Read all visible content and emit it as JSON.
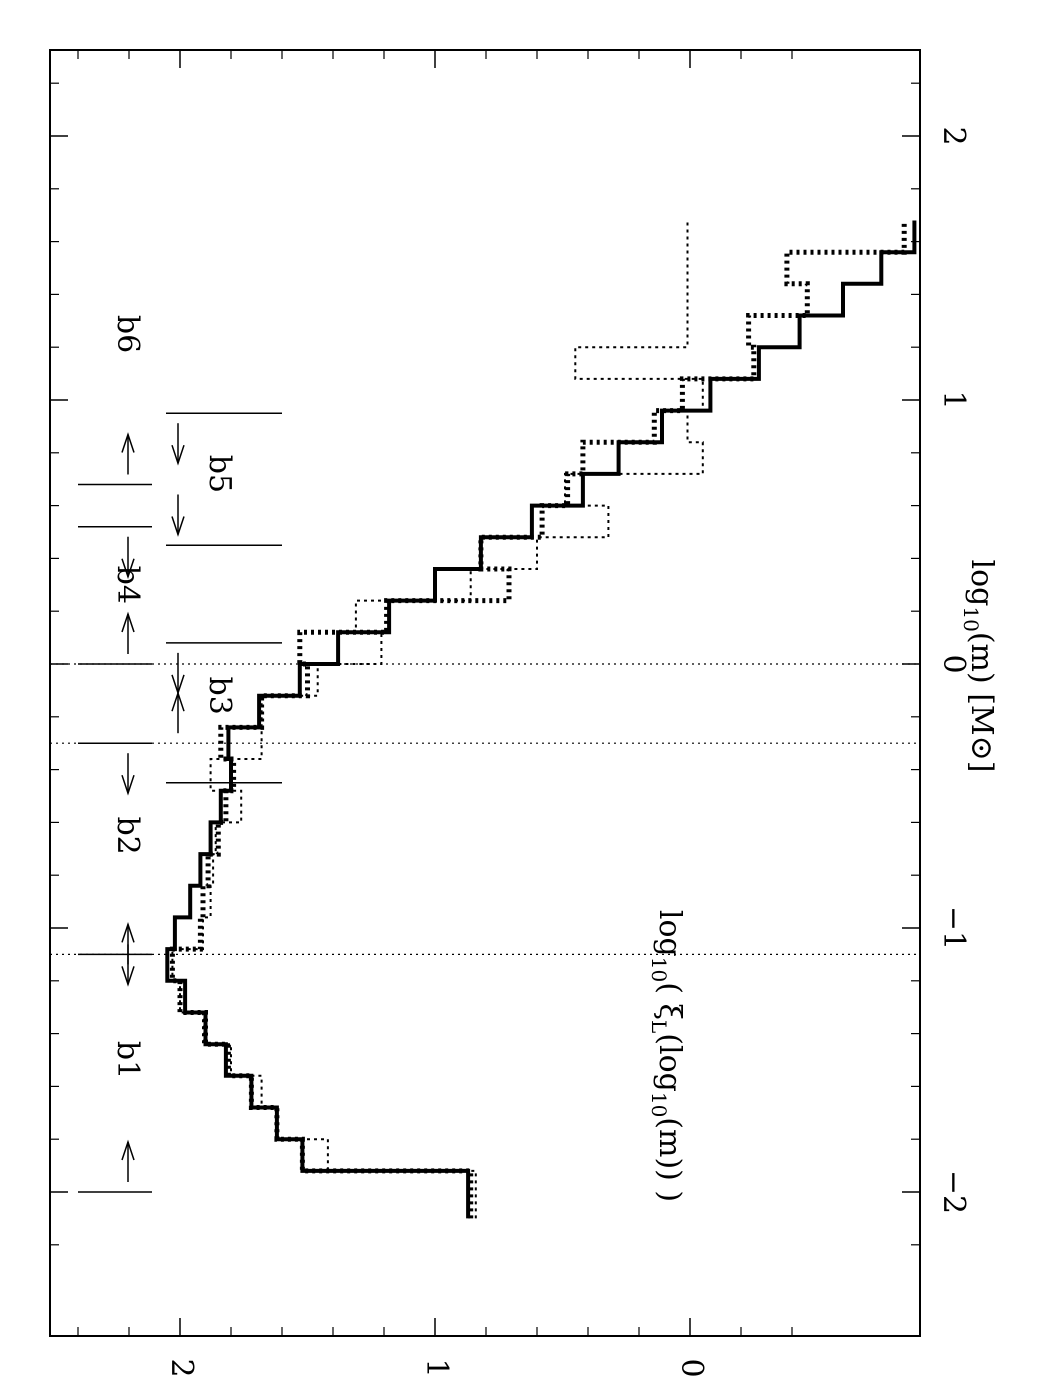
{
  "chart_data": {
    "type": "line",
    "step": true,
    "orientation": "rotated-90-clockwise",
    "xlabel_parts": {
      "base": "log",
      "sub": "10",
      "rest": "(m)   [M",
      "sun": "⊙",
      "close": "]"
    },
    "ylabel_parts": {
      "a": "log",
      "sub1": "10",
      "b": "( ξ",
      "subL": "L",
      "c": "(log",
      "sub2": "10",
      "d": "(m)) )"
    },
    "xlim": [
      -2.2,
      2.2
    ],
    "ylim": [
      -0.45,
      2.5
    ],
    "xticks": [
      -2,
      -1,
      0,
      1,
      2
    ],
    "xtick_labels": [
      "−2",
      "−1",
      "0",
      "1",
      "2"
    ],
    "yticks": [
      0,
      1,
      2
    ],
    "ytick_labels": [
      "0",
      "1",
      "2"
    ],
    "vlines_dotted": [
      -1.1,
      -0.3,
      0
    ],
    "series": [
      {
        "style": "solid-thick",
        "edges": [
          -2.1,
          -1.92,
          -1.8,
          -1.68,
          -1.56,
          -1.44,
          -1.32,
          -1.2,
          -1.08,
          -0.96,
          -0.84,
          -0.72,
          -0.6,
          -0.48,
          -0.36,
          -0.24,
          -0.12,
          0.0,
          0.12,
          0.24,
          0.36,
          0.48,
          0.6,
          0.72,
          0.84,
          0.96,
          1.08,
          1.2,
          1.32,
          1.44,
          1.56,
          1.68
        ],
        "values": [
          0.87,
          1.52,
          1.62,
          1.72,
          1.82,
          1.9,
          1.98,
          2.05,
          2.02,
          1.96,
          1.92,
          1.88,
          1.84,
          1.8,
          1.81,
          1.69,
          1.53,
          1.38,
          1.18,
          1.0,
          0.82,
          0.62,
          0.42,
          0.28,
          0.11,
          -0.08,
          -0.27,
          -0.43,
          -0.6,
          -0.75,
          -0.88
        ]
      },
      {
        "style": "dotted-thick",
        "edges": [
          -2.1,
          -1.92,
          -1.8,
          -1.68,
          -1.56,
          -1.44,
          -1.32,
          -1.2,
          -1.08,
          -0.96,
          -0.84,
          -0.72,
          -0.6,
          -0.48,
          -0.36,
          -0.24,
          -0.12,
          0.0,
          0.12,
          0.24,
          0.36,
          0.48,
          0.6,
          0.72,
          0.84,
          0.96,
          1.08,
          1.2,
          1.32,
          1.44,
          1.56,
          1.68
        ],
        "values": [
          0.86,
          1.52,
          1.62,
          1.72,
          1.81,
          1.9,
          2.0,
          2.03,
          1.92,
          1.91,
          1.89,
          1.85,
          1.82,
          1.79,
          1.84,
          1.68,
          1.5,
          1.53,
          1.19,
          0.71,
          0.82,
          0.58,
          0.48,
          0.42,
          0.14,
          0.03,
          -0.25,
          -0.23,
          -0.46,
          -0.38,
          -0.84
        ]
      },
      {
        "style": "dotted-thin",
        "edges": [
          -2.1,
          -1.92,
          -1.8,
          -1.68,
          -1.56,
          -1.44,
          -1.32,
          -1.2,
          -1.08,
          -0.96,
          -0.84,
          -0.72,
          -0.6,
          -0.48,
          -0.36,
          -0.24,
          -0.12,
          0.0,
          0.12,
          0.24,
          0.36,
          0.48,
          0.6,
          0.72,
          0.84,
          0.96,
          1.08,
          1.2,
          1.32,
          1.44,
          1.56,
          1.68
        ],
        "values": [
          0.84,
          1.42,
          1.62,
          1.68,
          1.8,
          1.91,
          2.0,
          2.03,
          1.91,
          1.88,
          1.87,
          1.86,
          1.76,
          1.88,
          1.68,
          1.68,
          1.46,
          1.21,
          1.31,
          0.86,
          0.6,
          0.32,
          0.49,
          -0.05,
          0.01,
          -0.05,
          0.45,
          0.01,
          0.01,
          0.01,
          0.01
        ]
      }
    ],
    "boundaries": [
      {
        "x": -2.0,
        "arrows": [
          "right"
        ]
      },
      {
        "x": -1.1,
        "arrows": [
          "left",
          "right"
        ]
      },
      {
        "x": -0.45,
        "arrows": [
          "left"
        ]
      },
      {
        "x": -0.3,
        "arrows": [
          "right"
        ]
      },
      {
        "x": 0.0,
        "arrows": [
          "right"
        ]
      },
      {
        "x": 0.08,
        "arrows": [
          "left"
        ]
      },
      {
        "x": 0.52,
        "arrows": [
          "left"
        ]
      },
      {
        "x": 0.68,
        "arrows": [
          "right"
        ]
      },
      {
        "x": 0.45,
        "arrows": [
          "right"
        ]
      },
      {
        "x": 0.95,
        "arrows": [
          "left"
        ]
      }
    ],
    "region_labels": [
      {
        "text": "b1",
        "x": -1.5,
        "row": "upper"
      },
      {
        "text": "b2",
        "x": -0.65,
        "row": "upper"
      },
      {
        "text": "b3",
        "x": -0.12,
        "row": "lower"
      },
      {
        "text": "b4",
        "x": 0.3,
        "row": "upper"
      },
      {
        "text": "b5",
        "x": 0.72,
        "row": "lower"
      },
      {
        "text": "b6",
        "x": 1.25,
        "row": "upper"
      }
    ]
  }
}
